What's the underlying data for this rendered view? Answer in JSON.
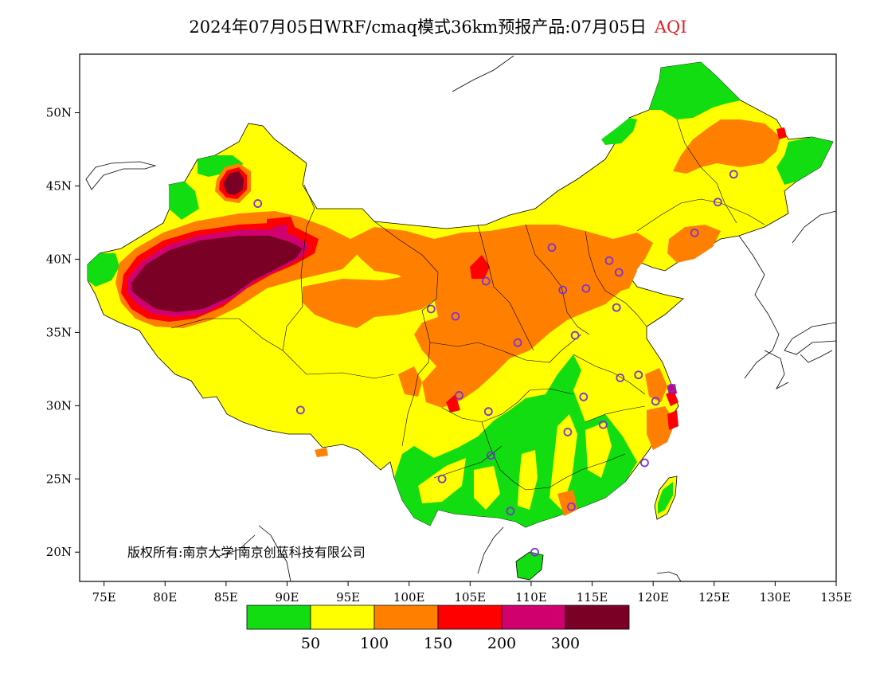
{
  "title": {
    "text": "2024年07月05日WRF/cmaq模式36km预报产品:07月05日",
    "variable": "AQI"
  },
  "copyright": "版权所有:南京大学|南京创蓝科技有限公司",
  "map": {
    "lon_range": [
      73,
      135
    ],
    "lat_range": [
      18,
      54
    ],
    "x_ticks": [
      "75E",
      "80E",
      "85E",
      "90E",
      "95E",
      "100E",
      "105E",
      "110E",
      "115E",
      "120E",
      "125E",
      "130E",
      "135E"
    ],
    "y_ticks": [
      "50N",
      "45N",
      "40N",
      "35N",
      "30N",
      "25N",
      "20N"
    ]
  },
  "legend": {
    "colors": [
      "#11dd11",
      "#ffff00",
      "#ff8000",
      "#ff0000",
      "#d0006f",
      "#7a0026"
    ],
    "labels": [
      "50",
      "100",
      "150",
      "200",
      "300"
    ]
  },
  "cities": [
    {
      "lon": 87.6,
      "lat": 43.8
    },
    {
      "lon": 91.1,
      "lat": 29.7
    },
    {
      "lon": 101.8,
      "lat": 36.6
    },
    {
      "lon": 103.8,
      "lat": 36.1
    },
    {
      "lon": 106.3,
      "lat": 38.5
    },
    {
      "lon": 111.7,
      "lat": 40.8
    },
    {
      "lon": 104.1,
      "lat": 30.7
    },
    {
      "lon": 106.5,
      "lat": 29.6
    },
    {
      "lon": 108.9,
      "lat": 34.3
    },
    {
      "lon": 112.6,
      "lat": 37.9
    },
    {
      "lon": 114.5,
      "lat": 38.0
    },
    {
      "lon": 116.4,
      "lat": 39.9
    },
    {
      "lon": 117.2,
      "lat": 39.1
    },
    {
      "lon": 117.0,
      "lat": 36.7
    },
    {
      "lon": 113.6,
      "lat": 34.8
    },
    {
      "lon": 114.3,
      "lat": 30.6
    },
    {
      "lon": 117.3,
      "lat": 31.9
    },
    {
      "lon": 118.8,
      "lat": 32.1
    },
    {
      "lon": 121.5,
      "lat": 31.2
    },
    {
      "lon": 120.2,
      "lat": 30.3
    },
    {
      "lon": 115.9,
      "lat": 28.7
    },
    {
      "lon": 113.0,
      "lat": 28.2
    },
    {
      "lon": 119.3,
      "lat": 26.1
    },
    {
      "lon": 106.7,
      "lat": 26.6
    },
    {
      "lon": 102.7,
      "lat": 25.0
    },
    {
      "lon": 108.3,
      "lat": 22.8
    },
    {
      "lon": 113.3,
      "lat": 23.1
    },
    {
      "lon": 110.3,
      "lat": 20.0
    },
    {
      "lon": 123.4,
      "lat": 41.8
    },
    {
      "lon": 125.3,
      "lat": 43.9
    },
    {
      "lon": 126.6,
      "lat": 45.8
    }
  ]
}
